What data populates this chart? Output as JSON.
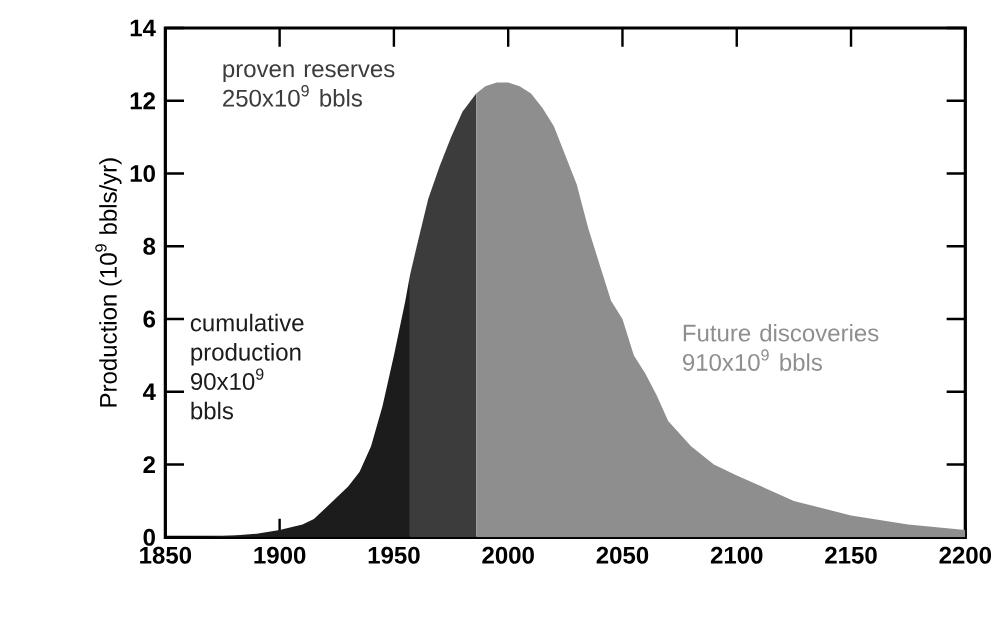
{
  "chart_data": {
    "type": "area",
    "ylabel": "Production (10$^{9}$ bbls/yr)",
    "xlim": [
      1850,
      2200
    ],
    "xticks": [
      1850,
      1900,
      1950,
      2000,
      2050,
      2100,
      2150,
      2200
    ],
    "ylim": [
      0,
      14
    ],
    "yticks": [
      0,
      2,
      4,
      6,
      8,
      10,
      12,
      14
    ],
    "grid": false,
    "legend": false,
    "series": [
      {
        "name": "cumulative production 90x10$^{9}$ bbls",
        "color": "#1c1c1c",
        "x": [
          1850,
          1870,
          1880,
          1890,
          1900,
          1910,
          1915,
          1920,
          1925,
          1930,
          1935,
          1940,
          1945,
          1950,
          1955,
          1957
        ],
        "values": [
          0,
          0.02,
          0.05,
          0.1,
          0.2,
          0.35,
          0.5,
          0.8,
          1.1,
          1.4,
          1.8,
          2.5,
          3.6,
          5,
          6.5,
          7.2
        ]
      },
      {
        "name": "proven reserves 250x10$^{9}$ bbls",
        "color": "#3c3c3c",
        "x": [
          1957,
          1960,
          1965,
          1970,
          1975,
          1980,
          1986
        ],
        "values": [
          7.2,
          8.0,
          9.3,
          10.2,
          11.0,
          11.7,
          12.2
        ]
      },
      {
        "name": "Future discoveries 910x10$^{9}$ bbls",
        "color": "#8e8e8e",
        "x": [
          1986,
          1990,
          1995,
          2000,
          2005,
          2010,
          2015,
          2020,
          2025,
          2030,
          2035,
          2040,
          2045,
          2050,
          2055,
          2060,
          2065,
          2070,
          2080,
          2090,
          2100,
          2125,
          2150,
          2175,
          2200
        ],
        "values": [
          12.2,
          12.4,
          12.5,
          12.5,
          12.4,
          12.2,
          11.8,
          11.3,
          10.5,
          9.7,
          8.5,
          7.5,
          6.5,
          6.0,
          5.0,
          4.5,
          3.9,
          3.2,
          2.5,
          2.0,
          1.7,
          1.0,
          0.6,
          0.35,
          0.2
        ]
      }
    ]
  }
}
